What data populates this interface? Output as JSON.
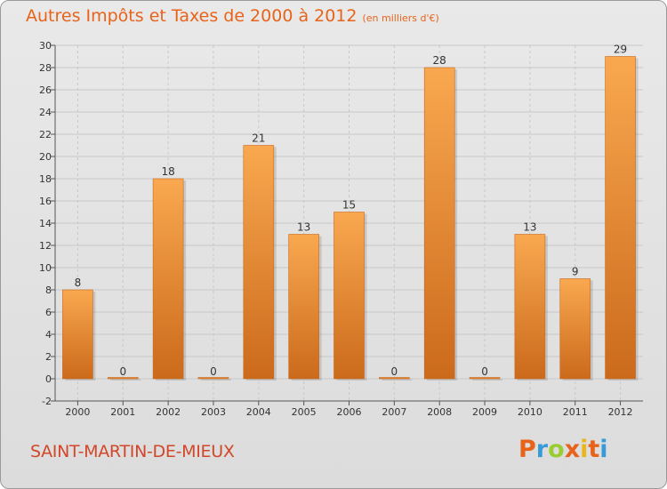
{
  "page": {
    "title": "Autres Impôts et Taxes de 2000 à 2012",
    "subtitle": "(en milliers d'€)",
    "commune": "SAINT-MARTIN-DE-MIEUX",
    "logo": "Proxiti"
  },
  "colors": {
    "title": "#e8631a",
    "commune": "#d2472a",
    "bar_light": "#f9a850",
    "bar_dark": "#cb6a1b",
    "logo_letters": [
      "#e8631a",
      "#3a9ad9",
      "#9acd32",
      "#e8631a",
      "#e8b61a",
      "#e8631a",
      "#3a9ad9"
    ]
  },
  "chart_data": {
    "type": "bar",
    "title": "Autres Impôts et Taxes de 2000 à 2012",
    "subtitle": "(en milliers d'€)",
    "categories": [
      "2000",
      "2001",
      "2002",
      "2003",
      "2004",
      "2005",
      "2006",
      "2007",
      "2008",
      "2009",
      "2010",
      "2011",
      "2012"
    ],
    "values": [
      8,
      0,
      18,
      0,
      21,
      13,
      15,
      0,
      28,
      0,
      13,
      9,
      29
    ],
    "ylim": [
      -2,
      30
    ],
    "yticks": [
      -2,
      0,
      2,
      4,
      6,
      8,
      10,
      12,
      14,
      16,
      18,
      20,
      22,
      24,
      26,
      28,
      30
    ],
    "grid": true
  }
}
